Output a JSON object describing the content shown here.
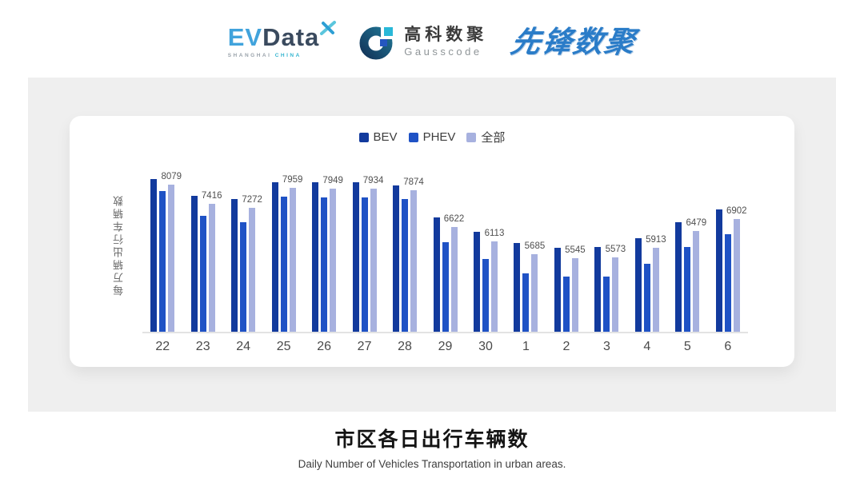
{
  "header": {
    "evdata": {
      "ev": "EV",
      "data": "Data",
      "tagline_city": "SHANGHAI",
      "tagline_country": "CHINA"
    },
    "gausscode": {
      "cn": "高科数聚",
      "en": "Gausscode"
    },
    "xianfeng": {
      "cn": "先锋数聚"
    }
  },
  "chart_data": {
    "type": "bar",
    "title": "市区各日出行车辆数",
    "subtitle": "Daily Number of Vehicles Transportation in urban areas.",
    "ylabel": "每万辆出行车辆数",
    "xlabel": "",
    "legend_position": "top",
    "grid": false,
    "ylim": [
      3000,
      9100
    ],
    "categories": [
      "22",
      "23",
      "24",
      "25",
      "26",
      "27",
      "28",
      "29",
      "30",
      "1",
      "2",
      "3",
      "4",
      "5",
      "6"
    ],
    "series": [
      {
        "id": "bev",
        "name": "BEV",
        "color": "#123a9d",
        "values": [
          8260,
          7700,
          7580,
          8170,
          8150,
          8160,
          8060,
          6940,
          6440,
          6060,
          5890,
          5940,
          6240,
          6790,
          7220
        ]
      },
      {
        "id": "phev",
        "name": "PHEV",
        "color": "#1f52c5",
        "values": [
          7850,
          6990,
          6790,
          7670,
          7640,
          7630,
          7580,
          6100,
          5500,
          5030,
          4910,
          4910,
          5340,
          5940,
          6370
        ]
      },
      {
        "id": "all",
        "name": "全部",
        "color": "#a7b1df",
        "values": [
          8079,
          7416,
          7272,
          7959,
          7949,
          7934,
          7874,
          6622,
          6113,
          5685,
          5545,
          5573,
          5913,
          6479,
          6902
        ]
      }
    ],
    "value_labels_series": "全部",
    "value_labels": [
      8079,
      7416,
      7272,
      7959,
      7949,
      7934,
      7874,
      6622,
      6113,
      5685,
      5545,
      5573,
      5913,
      6479,
      6902
    ]
  },
  "caption": {
    "title": "市区各日出行车辆数",
    "subtitle": "Daily Number of Vehicles Transportation in urban areas."
  },
  "colors": {
    "panel_bg": "#efefef",
    "card_bg": "#ffffff",
    "axis_line": "#e3e3e3",
    "evdata_blue": "#41a3dc",
    "evdata_slate": "#3a4a5e",
    "teal_accent": "#35b5d0",
    "xianfeng_blue": "#2a7cc8"
  }
}
